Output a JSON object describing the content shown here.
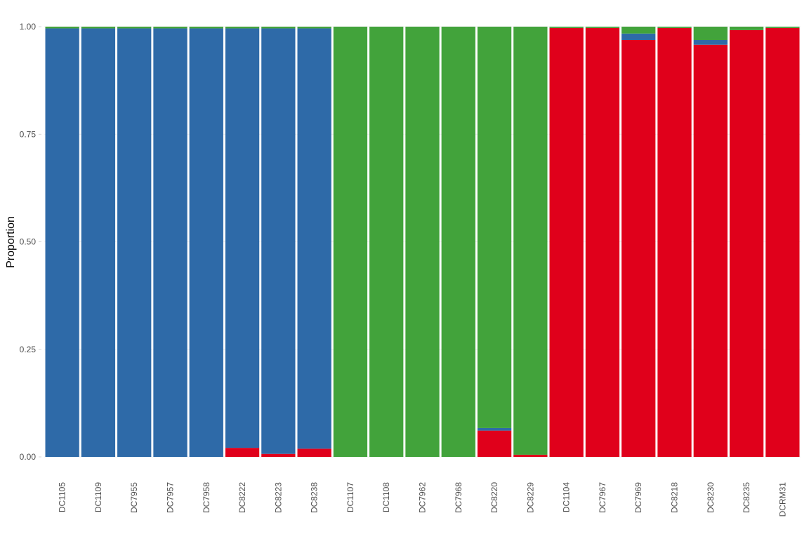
{
  "chart_data": {
    "type": "bar",
    "stacked": true,
    "title": "",
    "xlabel": "",
    "ylabel": "Proportion",
    "ylim": [
      0,
      1
    ],
    "yticks": [
      "0.00",
      "0.25",
      "0.50",
      "0.75",
      "1.00"
    ],
    "ytick_values": [
      0,
      0.25,
      0.5,
      0.75,
      1.0
    ],
    "grid": true,
    "legend": "none",
    "categories": [
      "DC1105",
      "DC1109",
      "DC7955",
      "DC7957",
      "DC7958",
      "DC8222",
      "DC8223",
      "DC8238",
      "DC1107",
      "DC1108",
      "DC7962",
      "DC7968",
      "DC8220",
      "DC8229",
      "DC1104",
      "DC7967",
      "DC7969",
      "DC8218",
      "DC8230",
      "DC8235",
      "DCRM31"
    ],
    "series": [
      {
        "color": "#e0001b",
        "values": [
          0.0,
          0.0,
          0.0,
          0.0,
          0.0,
          0.021,
          0.007,
          0.019,
          0.0,
          0.0,
          0.0,
          0.0,
          0.061,
          0.005,
          0.997,
          0.997,
          0.969,
          0.997,
          0.958,
          0.992,
          0.997
        ]
      },
      {
        "color": "#2e6aa8",
        "values": [
          0.996,
          0.996,
          0.996,
          0.996,
          0.996,
          0.975,
          0.989,
          0.977,
          0.0,
          0.0,
          0.0,
          0.0,
          0.006,
          0.0,
          0.0,
          0.0,
          0.015,
          0.0,
          0.011,
          0.0,
          0.0
        ]
      },
      {
        "color": "#42a33b",
        "values": [
          0.004,
          0.004,
          0.004,
          0.004,
          0.004,
          0.004,
          0.004,
          0.004,
          1.0,
          1.0,
          1.0,
          1.0,
          0.933,
          0.995,
          0.003,
          0.003,
          0.016,
          0.003,
          0.031,
          0.008,
          0.003
        ]
      }
    ]
  }
}
